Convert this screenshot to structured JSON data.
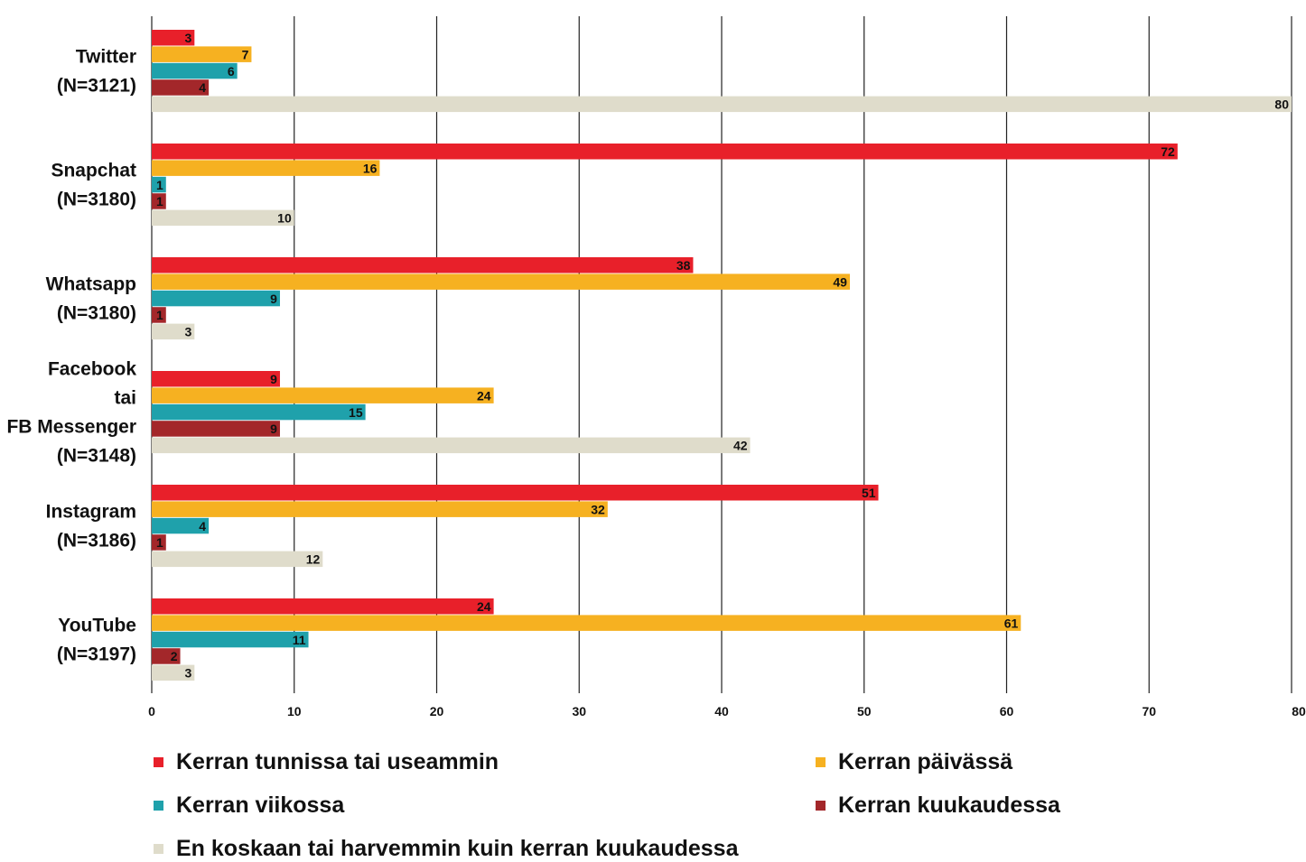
{
  "chart_data": {
    "type": "bar",
    "orientation": "horizontal",
    "categories": [
      [
        "Twitter",
        "(N=3121)"
      ],
      [
        "Snapchat",
        "(N=3180)"
      ],
      [
        "Whatsapp",
        "(N=3180)"
      ],
      [
        "Facebook",
        "tai",
        "FB Messenger",
        "(N=3148)"
      ],
      [
        "Instagram",
        "(N=3186)"
      ],
      [
        "YouTube",
        "(N=3197)"
      ]
    ],
    "series": [
      {
        "name": "Kerran tunnissa tai useammin",
        "color": "#e8202a",
        "values": [
          3,
          72,
          38,
          9,
          51,
          24
        ]
      },
      {
        "name": "Kerran päivässä",
        "color": "#f6b121",
        "values": [
          7,
          16,
          49,
          24,
          32,
          61
        ]
      },
      {
        "name": "Kerran viikossa",
        "color": "#1fa1ab",
        "values": [
          6,
          1,
          9,
          15,
          4,
          11
        ]
      },
      {
        "name": "Kerran kuukaudessa",
        "color": "#a3272a",
        "values": [
          4,
          1,
          1,
          9,
          1,
          2
        ]
      },
      {
        "name": "En koskaan tai harvemmin kuin kerran kuukaudessa",
        "color": "#dfdccb",
        "values": [
          80,
          10,
          3,
          42,
          12,
          3
        ]
      }
    ],
    "x_ticks": [
      "0",
      "10",
      "20",
      "30",
      "40",
      "50",
      "60",
      "70",
      "80"
    ],
    "xlim": [
      0,
      80
    ],
    "grid": true,
    "legend_position": "bottom"
  }
}
